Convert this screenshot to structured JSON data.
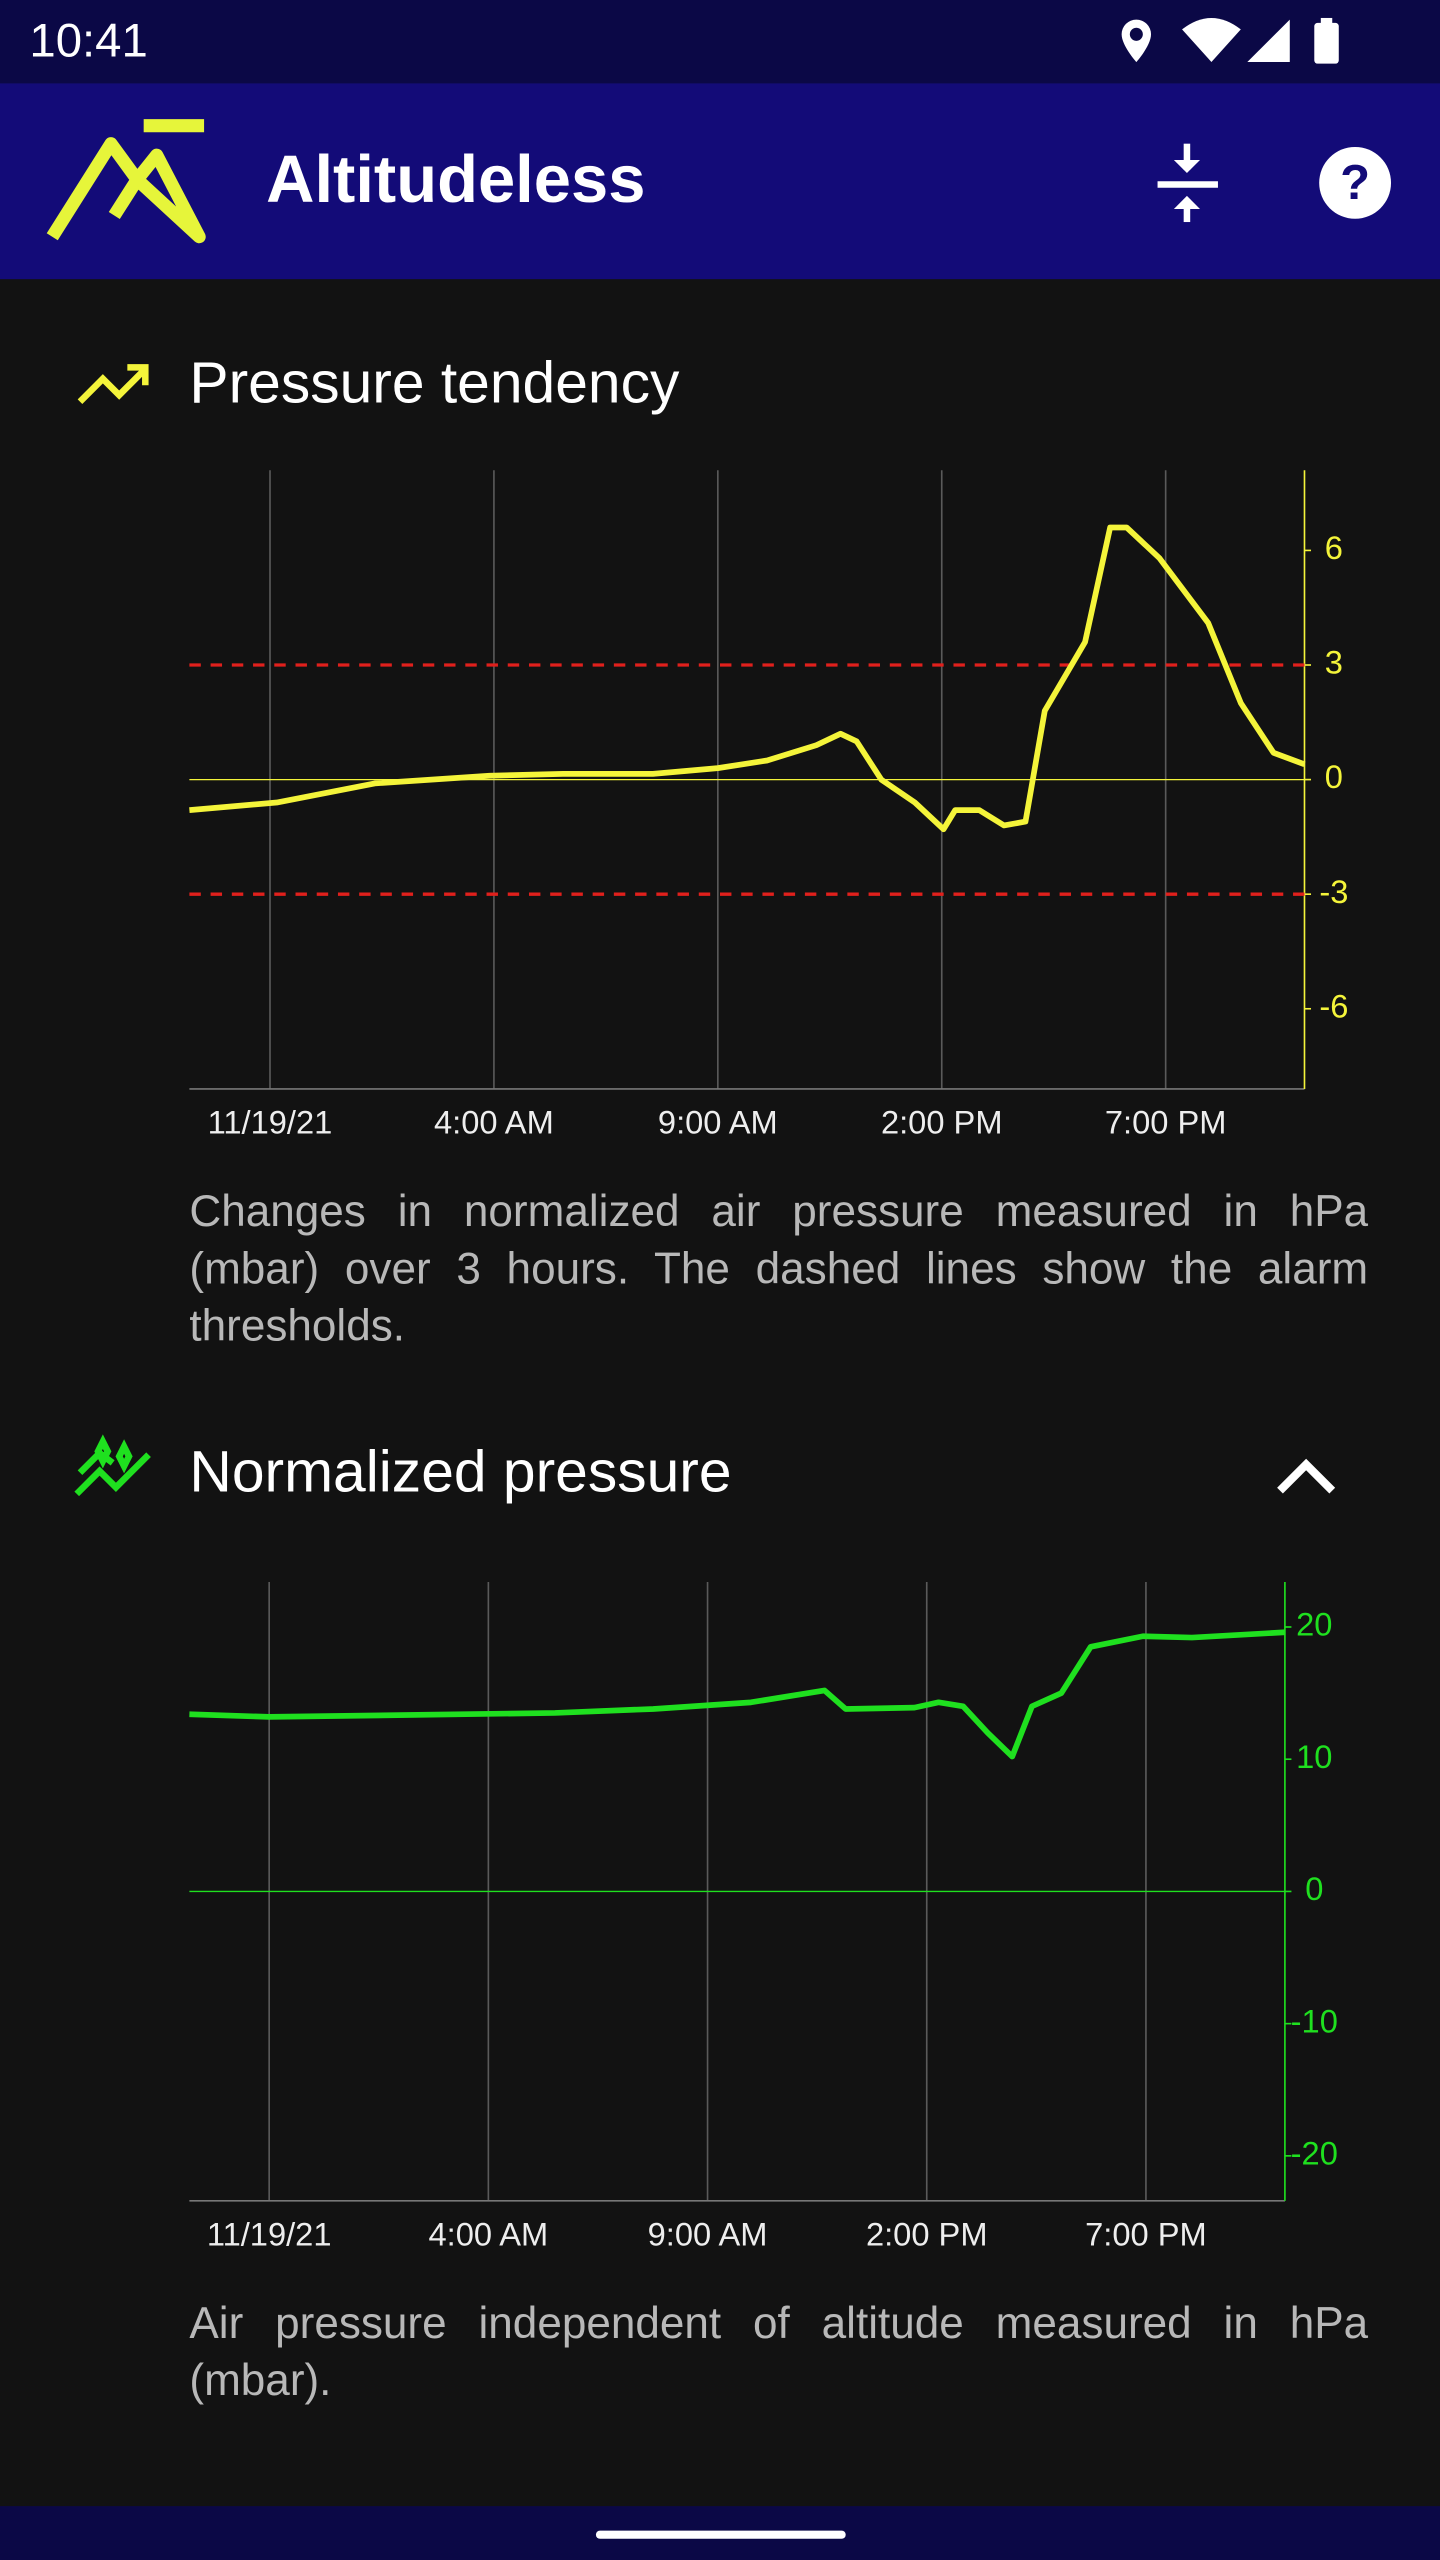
{
  "status_bar": {
    "time": "10:41"
  },
  "app_bar": {
    "title": "Altitudeless"
  },
  "sections": [
    {
      "title": "Pressure tendency",
      "description": "Changes in normalized air pressure measured in hPa (mbar) over 3 hours. The dashed lines show the alarm thresholds."
    },
    {
      "title": "Normalized pressure",
      "description": "Air pressure independent of altitude measured in hPa (mbar)."
    }
  ],
  "chart_data": [
    {
      "type": "line",
      "color": "#f4f43a",
      "zero_line": true,
      "y_axis_side": "right",
      "grid_x": true,
      "thresholds": [
        3,
        -3
      ],
      "threshold_color": "#e0201c",
      "x": [
        -2.8,
        -0.85,
        1.34,
        3.9,
        5.54,
        7.55,
        9.0,
        10.1,
        11.2,
        11.74,
        12.1,
        12.65,
        13.4,
        14.04,
        14.3,
        14.84,
        15.39,
        15.87,
        16.3,
        16.85,
        17.2,
        17.76,
        18.13,
        18.86,
        19.95,
        20.68,
        21.41,
        22.1
      ],
      "values": [
        -0.8,
        -0.6,
        -0.1,
        0.1,
        0.15,
        0.15,
        0.3,
        0.5,
        0.9,
        1.2,
        1.0,
        0,
        -0.6,
        -1.3,
        -0.8,
        -0.8,
        -1.2,
        -1.1,
        1.8,
        2.9,
        3.6,
        6.6,
        6.6,
        5.8,
        4.1,
        2.0,
        0.7,
        0.4
      ],
      "xlim": [
        -2.8,
        22.1
      ],
      "xticks": [
        {
          "value": -1,
          "label": "11/19/21"
        },
        {
          "value": 4,
          "label": "4:00 AM"
        },
        {
          "value": 9,
          "label": "9:00 AM"
        },
        {
          "value": 14,
          "label": "2:00 PM"
        },
        {
          "value": 19,
          "label": "7:00 PM"
        }
      ],
      "ylim": [
        -8.1,
        8.1
      ],
      "yticks": [
        -6,
        -3,
        0,
        3,
        6
      ]
    },
    {
      "type": "line",
      "color": "#1fe01f",
      "zero_line": true,
      "y_axis_side": "right",
      "grid_x": true,
      "x": [
        -2.82,
        -1.0,
        5.52,
        7.76,
        9.99,
        11.67,
        12.15,
        13.72,
        14.27,
        14.83,
        15.39,
        15.95,
        16.4,
        17.07,
        17.74,
        18.93,
        20.05,
        22.17
      ],
      "values": [
        13.4,
        13.2,
        13.5,
        13.8,
        14.3,
        15.2,
        13.8,
        13.9,
        14.3,
        14.0,
        12,
        10.2,
        14.0,
        15,
        18.5,
        19.3,
        19.2,
        19.6
      ],
      "xlim": [
        -2.82,
        22.17
      ],
      "xticks": [
        {
          "value": -1,
          "label": "11/19/21"
        },
        {
          "value": 4,
          "label": "4:00 AM"
        },
        {
          "value": 9,
          "label": "9:00 AM"
        },
        {
          "value": 14,
          "label": "2:00 PM"
        },
        {
          "value": 19,
          "label": "7:00 PM"
        }
      ],
      "ylim": [
        -23.4,
        23.4
      ],
      "yticks": [
        -20,
        -10,
        0,
        10,
        20
      ]
    }
  ]
}
